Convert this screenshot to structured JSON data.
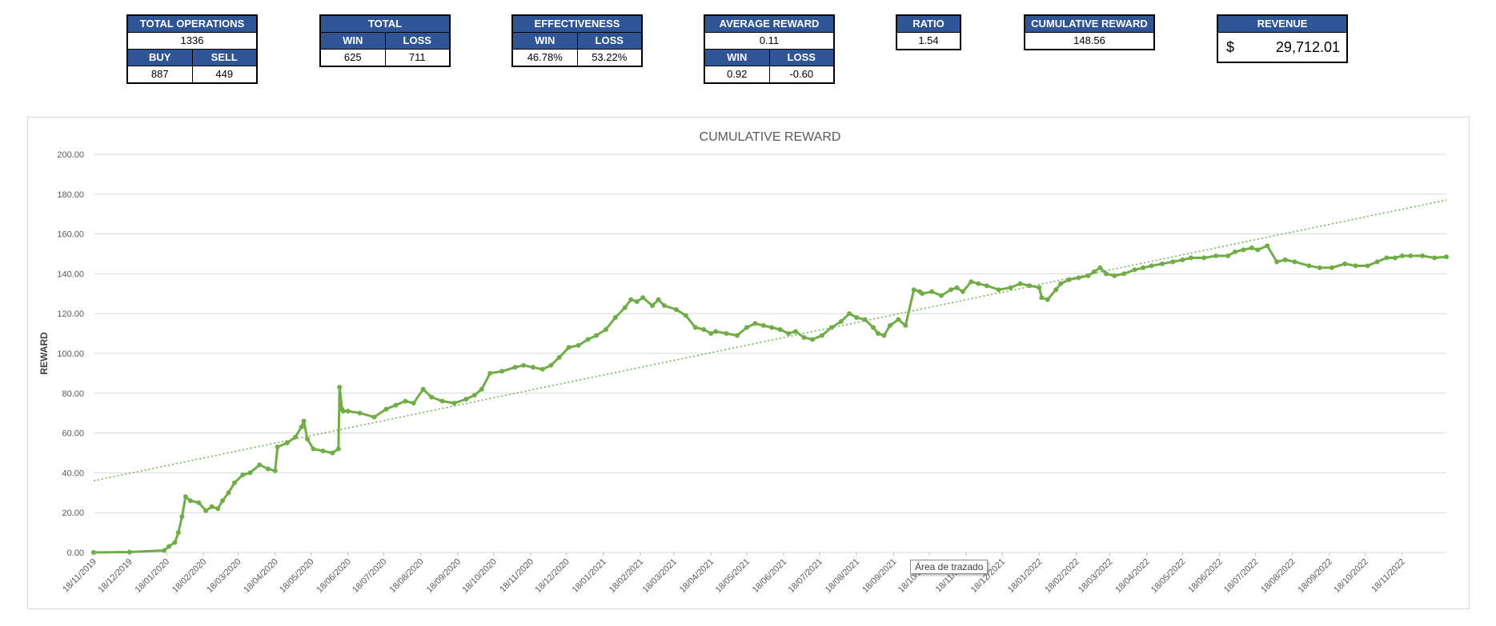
{
  "kpis": {
    "total_operations": {
      "title": "TOTAL OPERATIONS",
      "value": "1336",
      "buy_label": "BUY",
      "sell_label": "SELL",
      "buy": "887",
      "sell": "449"
    },
    "total": {
      "title": "TOTAL",
      "win_label": "WIN",
      "loss_label": "LOSS",
      "win": "625",
      "loss": "711"
    },
    "effectiveness": {
      "title": "EFFECTIVENESS",
      "win_label": "WIN",
      "loss_label": "LOSS",
      "win": "46.78%",
      "loss": "53.22%"
    },
    "average_reward": {
      "title": "AVERAGE REWARD",
      "value": "0.11",
      "win_label": "WIN",
      "loss_label": "LOSS",
      "win": "0.92",
      "loss": "-0.60"
    },
    "ratio": {
      "title": "RATIO",
      "value": "1.54"
    },
    "cumulative_reward": {
      "title": "CUMULATIVE REWARD",
      "value": "148.56"
    },
    "revenue": {
      "title": "REVENUE",
      "currency": "$",
      "value": "29,712.01"
    }
  },
  "tooltip": "Área de trazado",
  "chart_data": {
    "type": "line",
    "title": "CUMULATIVE REWARD",
    "xlabel": "",
    "ylabel": "REWARD",
    "ylim": [
      0,
      200
    ],
    "y_ticks": [
      "0.00",
      "20.00",
      "40.00",
      "60.00",
      "80.00",
      "100.00",
      "120.00",
      "140.00",
      "160.00",
      "180.00",
      "200.00"
    ],
    "grid": true,
    "x_tick_labels": [
      "18/11/2019",
      "18/12/2019",
      "18/01/2020",
      "18/02/2020",
      "18/03/2020",
      "18/04/2020",
      "18/05/2020",
      "18/06/2020",
      "18/07/2020",
      "18/08/2020",
      "18/09/2020",
      "18/10/2020",
      "18/11/2020",
      "18/12/2020",
      "18/01/2021",
      "18/02/2021",
      "18/03/2021",
      "18/04/2021",
      "18/05/2021",
      "18/06/2021",
      "18/07/2021",
      "18/08/2021",
      "18/09/2021",
      "18/10/2021",
      "18/11/2021",
      "18/12/2021",
      "18/01/2022",
      "18/02/2022",
      "18/03/2022",
      "18/04/2022",
      "18/05/2022",
      "18/06/2022",
      "18/07/2022",
      "18/08/2022",
      "18/09/2022",
      "18/10/2022",
      "18/11/2022"
    ],
    "series_color": "#70ad47",
    "trendline": {
      "style": "dotted",
      "color": "#70ad47",
      "x": [
        "2019-11-18",
        "2022-12-25"
      ],
      "y": [
        36,
        177
      ]
    },
    "series": [
      {
        "x": [
          "2019-11-18",
          "2019-12-18",
          "2020-01-16",
          "2020-01-20",
          "2020-01-25",
          "2020-01-28",
          "2020-01-31",
          "2020-02-03",
          "2020-02-07",
          "2020-02-14",
          "2020-02-20",
          "2020-02-25",
          "2020-03-01",
          "2020-03-05",
          "2020-03-10",
          "2020-03-15",
          "2020-03-22",
          "2020-03-28",
          "2020-04-05",
          "2020-04-12",
          "2020-04-18",
          "2020-04-20",
          "2020-04-28",
          "2020-05-05",
          "2020-05-10",
          "2020-05-12",
          "2020-05-15",
          "2020-05-20",
          "2020-05-28",
          "2020-06-05",
          "2020-06-10",
          "2020-06-11",
          "2020-06-13",
          "2020-06-14",
          "2020-06-18",
          "2020-06-28",
          "2020-07-10",
          "2020-07-20",
          "2020-07-28",
          "2020-08-05",
          "2020-08-12",
          "2020-08-20",
          "2020-08-27",
          "2020-09-05",
          "2020-09-15",
          "2020-09-25",
          "2020-10-02",
          "2020-10-08",
          "2020-10-15",
          "2020-10-25",
          "2020-11-05",
          "2020-11-12",
          "2020-11-20",
          "2020-11-28",
          "2020-12-05",
          "2020-12-12",
          "2020-12-20",
          "2020-12-28",
          "2021-01-05",
          "2021-01-12",
          "2021-01-20",
          "2021-01-28",
          "2021-02-05",
          "2021-02-10",
          "2021-02-15",
          "2021-02-20",
          "2021-02-28",
          "2021-03-05",
          "2021-03-10",
          "2021-03-20",
          "2021-03-28",
          "2021-04-05",
          "2021-04-12",
          "2021-04-18",
          "2021-04-22",
          "2021-05-01",
          "2021-05-10",
          "2021-05-18",
          "2021-05-25",
          "2021-06-01",
          "2021-06-08",
          "2021-06-15",
          "2021-06-22",
          "2021-06-28",
          "2021-07-05",
          "2021-07-12",
          "2021-07-20",
          "2021-07-28",
          "2021-08-05",
          "2021-08-12",
          "2021-08-18",
          "2021-08-25",
          "2021-09-01",
          "2021-09-05",
          "2021-09-10",
          "2021-09-15",
          "2021-09-22",
          "2021-09-28",
          "2021-10-05",
          "2021-10-10",
          "2021-10-12",
          "2021-10-20",
          "2021-10-28",
          "2021-11-05",
          "2021-11-10",
          "2021-11-15",
          "2021-11-22",
          "2021-11-28",
          "2021-12-05",
          "2021-12-15",
          "2021-12-25",
          "2022-01-02",
          "2022-01-10",
          "2022-01-18",
          "2022-01-20",
          "2022-01-25",
          "2022-02-01",
          "2022-02-05",
          "2022-02-12",
          "2022-02-20",
          "2022-02-28",
          "2022-03-05",
          "2022-03-10",
          "2022-03-15",
          "2022-03-22",
          "2022-03-30",
          "2022-04-08",
          "2022-04-15",
          "2022-04-22",
          "2022-05-01",
          "2022-05-10",
          "2022-05-18",
          "2022-05-25",
          "2022-06-05",
          "2022-06-15",
          "2022-06-25",
          "2022-07-01",
          "2022-07-08",
          "2022-07-15",
          "2022-07-20",
          "2022-07-28",
          "2022-08-05",
          "2022-08-12",
          "2022-08-20",
          "2022-09-01",
          "2022-09-10",
          "2022-09-20",
          "2022-10-01",
          "2022-10-10",
          "2022-10-20",
          "2022-10-28",
          "2022-11-05",
          "2022-11-12",
          "2022-11-18",
          "2022-11-25",
          "2022-12-05",
          "2022-12-15",
          "2022-12-25"
        ],
        "y": [
          0.0,
          0.2,
          1.0,
          3.0,
          5.0,
          10.0,
          18.0,
          28.0,
          26.0,
          25.0,
          21.0,
          23.0,
          22.0,
          26.0,
          30.0,
          35.0,
          39.0,
          40.0,
          44.0,
          42.0,
          41.0,
          53.0,
          55.0,
          58.0,
          63.0,
          66.0,
          57.0,
          52.0,
          51.0,
          50.0,
          52.0,
          83.0,
          72.0,
          71.0,
          71.0,
          70.0,
          68.0,
          72.0,
          74.0,
          76.0,
          75.0,
          82.0,
          78.0,
          76.0,
          75.0,
          77.0,
          79.0,
          82.0,
          90.0,
          91.0,
          93.0,
          94.0,
          93.0,
          92.0,
          94.0,
          98.0,
          103.0,
          104.0,
          107.0,
          109.0,
          112.0,
          118.0,
          123.0,
          127.0,
          126.0,
          128.0,
          124.0,
          127.0,
          124.0,
          122.0,
          119.0,
          113.0,
          112.0,
          110.0,
          111.0,
          110.0,
          109.0,
          113.0,
          115.0,
          114.0,
          113.0,
          112.0,
          110.0,
          111.0,
          108.0,
          107.0,
          109.0,
          113.0,
          116.0,
          120.0,
          118.0,
          117.0,
          113.0,
          110.0,
          109.0,
          114.0,
          117.0,
          114.0,
          132.0,
          131.0,
          130.0,
          131.0,
          129.0,
          132.0,
          133.0,
          131.0,
          136.0,
          135.0,
          134.0,
          132.0,
          133.0,
          135.0,
          134.0,
          133.0,
          128.0,
          127.0,
          132.0,
          135.0,
          137.0,
          138.0,
          139.0,
          141.0,
          143.0,
          140.0,
          139.0,
          140.0,
          142.0,
          143.0,
          144.0,
          145.0,
          146.0,
          147.0,
          148.0,
          148.0,
          149.0,
          149.0,
          151.0,
          152.0,
          153.0,
          152.0,
          154.0,
          146.0,
          147.0,
          146.0,
          144.0,
          143.0,
          143.0,
          145.0,
          144.0,
          144.0,
          146.0,
          148.0,
          148.0,
          149.0,
          149.0,
          149.0,
          148.0,
          148.5
        ]
      }
    ]
  }
}
